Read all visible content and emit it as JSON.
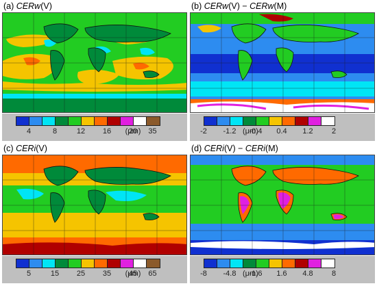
{
  "panels": {
    "a": {
      "label": "(a)",
      "title_parts": [
        {
          "t": "CERw",
          "i": true
        },
        {
          "t": "(V)",
          "i": false
        }
      ],
      "unit": "(μm)",
      "ticks": [
        "4",
        "8",
        "12",
        "16",
        "20",
        "35"
      ],
      "colors": [
        "#1030d0",
        "#2d8cf0",
        "#00e5f5",
        "#008a3a",
        "#22cc22",
        "#f5c400",
        "#ff6a00",
        "#b00000",
        "#e020e0",
        "#ffffff",
        "#8b5a2b"
      ]
    },
    "b": {
      "label": "(b)",
      "title_parts": [
        {
          "t": "CERw",
          "i": true
        },
        {
          "t": "(V) − ",
          "i": false
        },
        {
          "t": "CERw",
          "i": true
        },
        {
          "t": "(M)",
          "i": false
        }
      ],
      "unit": "(μm)",
      "ticks": [
        "-2",
        "-1.2",
        "-0.4",
        "0.4",
        "1.2",
        "2"
      ],
      "colors": [
        "#1030d0",
        "#2d8cf0",
        "#00e5f5",
        "#008a3a",
        "#22cc22",
        "#f5c400",
        "#ff6a00",
        "#b00000",
        "#e020e0",
        "#ffffff"
      ]
    },
    "c": {
      "label": "(c)",
      "title_parts": [
        {
          "t": "CERi",
          "i": true
        },
        {
          "t": "(V)",
          "i": false
        }
      ],
      "unit": "(μm)",
      "ticks": [
        "5",
        "15",
        "25",
        "35",
        "45",
        "65"
      ],
      "colors": [
        "#1030d0",
        "#2d8cf0",
        "#00e5f5",
        "#008a3a",
        "#22cc22",
        "#f5c400",
        "#ff6a00",
        "#b00000",
        "#e020e0",
        "#ffffff",
        "#8b5a2b"
      ]
    },
    "d": {
      "label": "(d)",
      "title_parts": [
        {
          "t": "CERi",
          "i": true
        },
        {
          "t": "(V) − ",
          "i": false
        },
        {
          "t": "CERi",
          "i": true
        },
        {
          "t": "(M)",
          "i": false
        }
      ],
      "unit": "(μm)",
      "ticks": [
        "-8",
        "-4.8",
        "-1.6",
        "1.6",
        "4.8",
        "8"
      ],
      "colors": [
        "#1030d0",
        "#2d8cf0",
        "#00e5f5",
        "#008a3a",
        "#22cc22",
        "#f5c400",
        "#ff6a00",
        "#b00000",
        "#e020e0",
        "#ffffff"
      ]
    }
  }
}
